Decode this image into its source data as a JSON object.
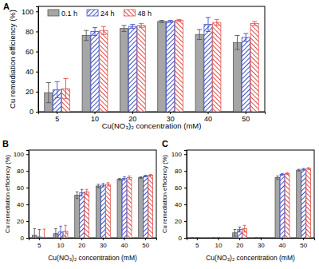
{
  "chart_data": [
    {
      "type": "bar",
      "title": "A",
      "x_label": "Cu(NO₃)₂ concentration (mM)",
      "y_label": "Cu remediation efficiency (%)",
      "categories": [
        "5",
        "10",
        "20",
        "30",
        "40",
        "50"
      ],
      "series": [
        {
          "name": "0.1 h",
          "color": "#a6a6a6",
          "values": [
            19,
            76,
            83,
            90,
            77,
            69
          ],
          "errors": [
            10,
            5,
            3,
            1,
            5,
            7
          ]
        },
        {
          "name": "24 h",
          "color": "#3f51c4",
          "values": [
            22,
            80,
            85,
            90,
            87,
            74
          ],
          "errors": [
            8,
            4,
            2,
            1,
            7,
            4
          ]
        },
        {
          "name": "48 h",
          "color": "#e0504a",
          "values": [
            23,
            81,
            86,
            91,
            89,
            88
          ],
          "errors": [
            10,
            4,
            2,
            1,
            3,
            2
          ]
        }
      ],
      "ylim": [
        0,
        105
      ],
      "yticks": [
        0,
        20,
        40,
        60,
        80,
        100
      ],
      "legend": "top"
    },
    {
      "type": "bar",
      "title": "B",
      "x_label": "Cu(NO₃)₂ concentration (mM)",
      "y_label": "Cu remediation efficiency (%)",
      "categories": [
        "5",
        "10",
        "20",
        "30",
        "40",
        "50"
      ],
      "series": [
        {
          "name": "0.1 h",
          "color": "#a6a6a6",
          "values": [
            3,
            5,
            51,
            62,
            70,
            72
          ],
          "errors": [
            8,
            6,
            4,
            2,
            1,
            1
          ]
        },
        {
          "name": "24 h",
          "color": "#3f51c4",
          "values": [
            1,
            7,
            54,
            63,
            71,
            74
          ],
          "errors": [
            9,
            7,
            4,
            2,
            2,
            1
          ]
        },
        {
          "name": "48 h",
          "color": "#e0504a",
          "values": [
            0.5,
            8,
            55,
            64,
            72,
            75
          ],
          "errors": [
            10,
            7,
            3,
            2,
            2,
            1
          ]
        }
      ],
      "ylim": [
        0,
        105
      ],
      "yticks": [
        0,
        20,
        40,
        60,
        80,
        100
      ],
      "legend": false
    },
    {
      "type": "bar",
      "title": "C",
      "x_label": "Cu(NO₃)₂ concentration (mM)",
      "y_label": "Cu remediation efficiency (%)",
      "categories": [
        "5",
        "10",
        "20",
        "30",
        "40",
        "50"
      ],
      "series": [
        {
          "name": "0.1 h",
          "color": "#a6a6a6",
          "values": [
            0,
            0,
            6,
            0,
            72,
            81
          ],
          "errors": [
            0,
            0,
            4,
            0,
            2,
            1
          ]
        },
        {
          "name": "24 h",
          "color": "#3f51c4",
          "values": [
            0,
            0,
            10,
            0,
            76,
            82
          ],
          "errors": [
            0,
            0,
            3,
            0,
            1,
            1
          ]
        },
        {
          "name": "48 h",
          "color": "#e0504a",
          "values": [
            0,
            0,
            11,
            0,
            77,
            83
          ],
          "errors": [
            0,
            0,
            4,
            0,
            1,
            1
          ]
        }
      ],
      "ylim": [
        0,
        105
      ],
      "yticks": [
        0,
        20,
        40,
        60,
        80,
        100
      ],
      "legend": false
    }
  ]
}
